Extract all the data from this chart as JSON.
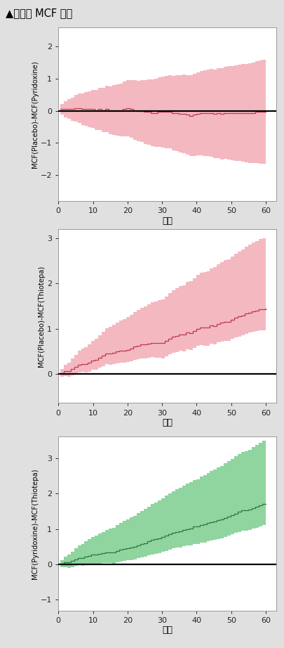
{
  "title": "▲组间的 MCF 差值",
  "title_fontsize": 10.5,
  "background_color": "#e0e0e0",
  "plot_bg": "#ffffff",
  "xlabel": "年龄",
  "panels": [
    {
      "ylabel": "MCF(Placebo)-MCF(Pyridoxine)",
      "ylim": [
        -2.8,
        2.6
      ],
      "yticks": [
        -2,
        -1,
        0,
        1,
        2
      ],
      "line_color": "#c0394b",
      "band_color": "#f4b8c1",
      "hline": 0
    },
    {
      "ylabel": "MCF(Placebo)-MCF(Thiotepa)",
      "ylim": [
        -0.65,
        3.2
      ],
      "yticks": [
        0,
        1,
        2,
        3
      ],
      "line_color": "#c0394b",
      "band_color": "#f4b8c1",
      "hline": 0
    },
    {
      "ylabel": "MCF(Pyridoxine)-MCF(Thiotepa)",
      "ylim": [
        -1.3,
        3.6
      ],
      "yticks": [
        -1,
        0,
        1,
        2,
        3
      ],
      "line_color": "#2d7a3a",
      "band_color": "#90d4a0",
      "hline": 0
    }
  ],
  "xlim": [
    0,
    63
  ],
  "xticks": [
    0,
    10,
    20,
    30,
    40,
    50,
    60
  ]
}
